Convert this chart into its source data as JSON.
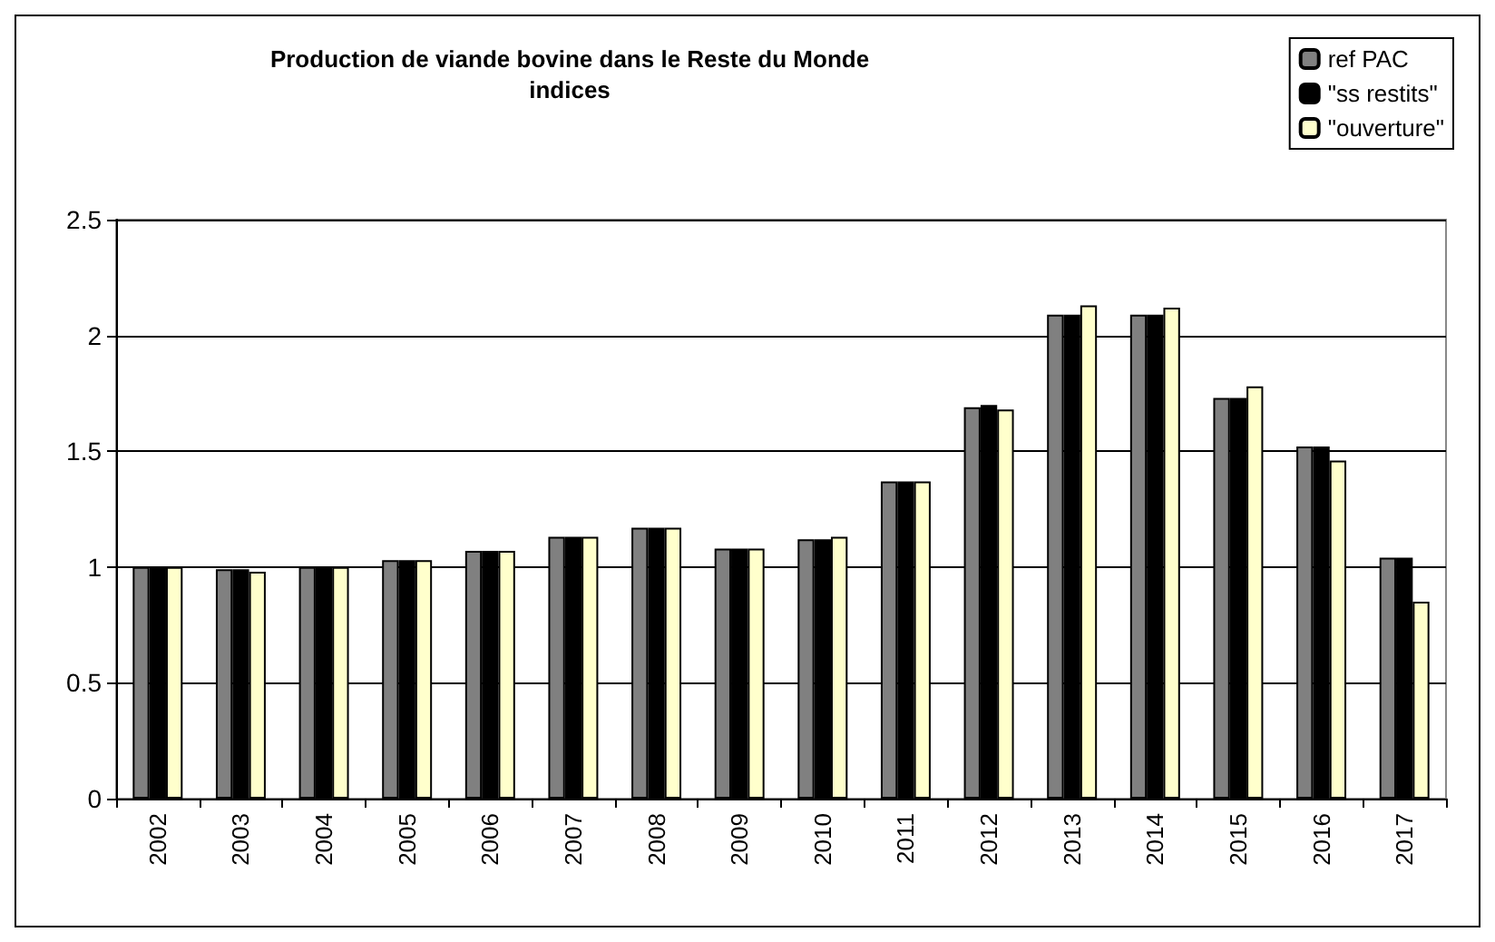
{
  "chart_data": {
    "type": "bar",
    "title": "Production de viande bovine dans le Reste du Monde",
    "subtitle": "indices",
    "categories": [
      "2002",
      "2003",
      "2004",
      "2005",
      "2006",
      "2007",
      "2008",
      "2009",
      "2010",
      "2011",
      "2012",
      "2013",
      "2014",
      "2015",
      "2016",
      "2017"
    ],
    "series": [
      {
        "name": "ref PAC",
        "color": "#808080",
        "values": [
          1,
          0.99,
          1,
          1.03,
          1.07,
          1.13,
          1.17,
          1.08,
          1.12,
          1.37,
          1.69,
          2.09,
          2.09,
          1.73,
          1.52,
          1.04
        ]
      },
      {
        "name": "\"ss restits\"",
        "color": "#000000",
        "values": [
          1,
          0.99,
          1,
          1.03,
          1.07,
          1.13,
          1.17,
          1.08,
          1.12,
          1.37,
          1.7,
          2.09,
          2.09,
          1.73,
          1.52,
          1.04
        ]
      },
      {
        "name": "\"ouverture\"",
        "color": "#ffffcc",
        "values": [
          1,
          0.98,
          1,
          1.03,
          1.07,
          1.13,
          1.17,
          1.08,
          1.13,
          1.37,
          1.68,
          2.13,
          2.12,
          1.78,
          1.46,
          0.85
        ]
      }
    ],
    "ylim": [
      0,
      2.5
    ],
    "yticks": [
      0,
      0.5,
      1,
      1.5,
      2,
      2.5
    ],
    "grid": "y",
    "legend": "top right"
  }
}
